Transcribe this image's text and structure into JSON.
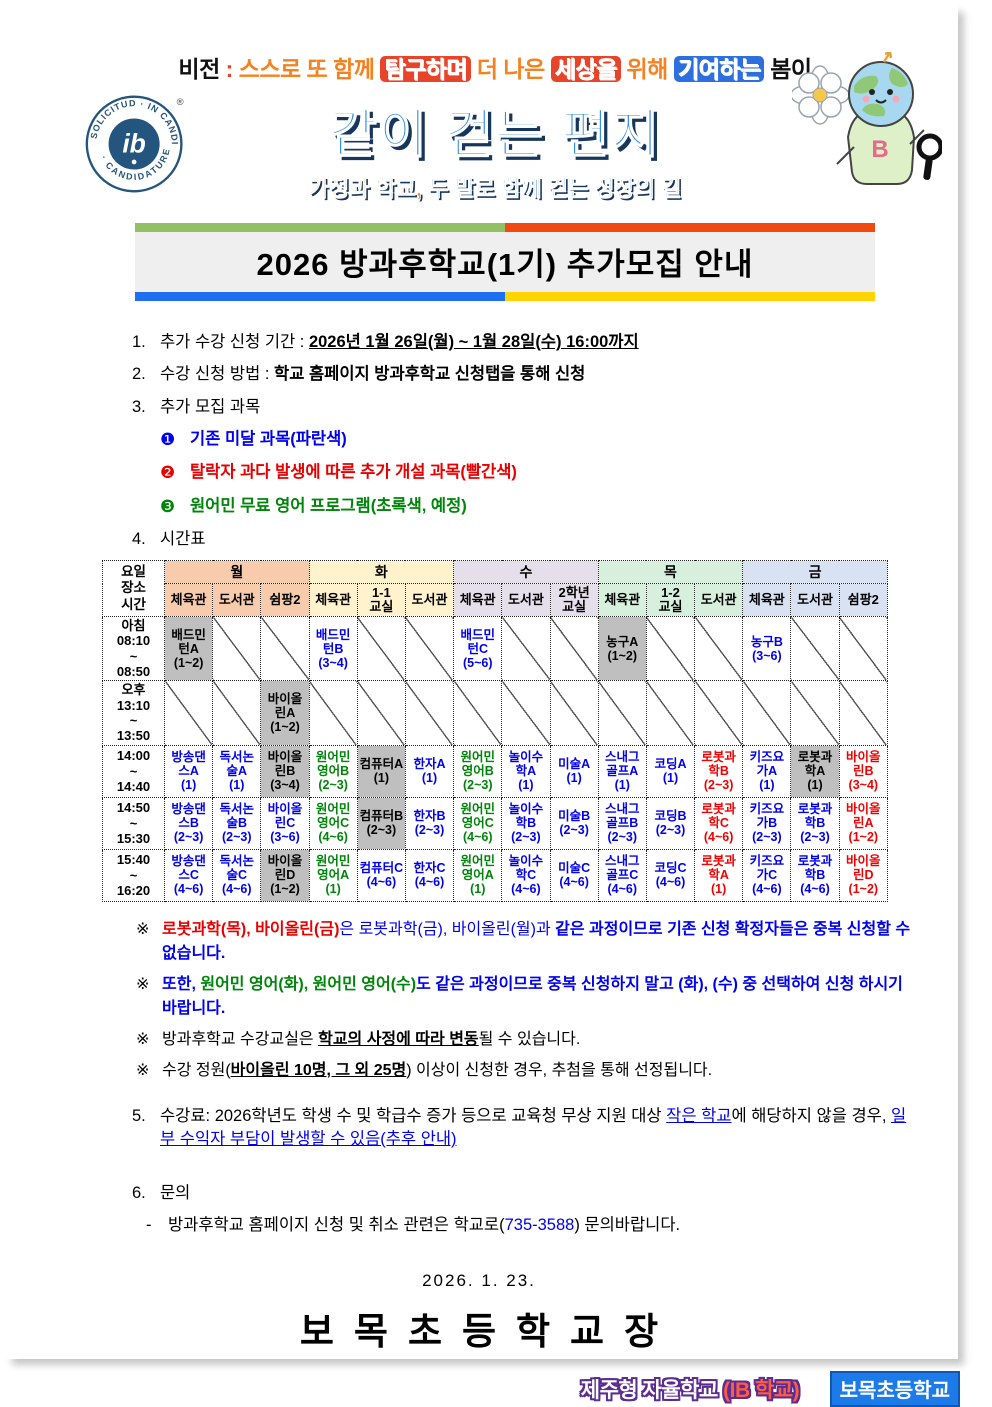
{
  "header": {
    "logo": {
      "ring_text_top": "SOLICITUD · IN CANDIDACY",
      "ring_text_bottom": "· CANDIDATURE ·",
      "monogram": "ib",
      "registered_mark": "®"
    },
    "vision_segments": [
      {
        "t": "비전",
        "s": "vb"
      },
      {
        "t": " : ",
        "s": "vr"
      },
      {
        "t": "스스로 또 함께 ",
        "s": "vo"
      },
      {
        "t": "탐구하며",
        "s": "vrb"
      },
      {
        "t": " 더 나은 ",
        "s": "vo"
      },
      {
        "t": "세상을",
        "s": "vrb"
      },
      {
        "t": " 위해 ",
        "s": "vo"
      },
      {
        "t": "기여하는",
        "s": "vbb"
      },
      {
        "t": " 봄이",
        "s": "vb"
      }
    ],
    "title": "같이 걷는 편지",
    "subtitle_segments": [
      {
        "t": "가정과 학교,",
        "s": "so"
      },
      {
        "t": " 두 발로 함께 걷는 성장의 길",
        "s": "sb"
      }
    ],
    "mascot_icon": "earth-magnifier-mascot",
    "flower_icon": "white-flower"
  },
  "banner": {
    "title": "2026 방과후학교(1기) 추가모집 안내"
  },
  "items": [
    {
      "marker": "1.",
      "segments": [
        {
          "t": "추가 수강 신청 기간 : "
        },
        {
          "t": "2026년 1월 26일(월) ~ 1월 28일(수) 16:00까지",
          "s": "bold underline"
        }
      ]
    },
    {
      "marker": "2.",
      "segments": [
        {
          "t": "수강 신청 방법 : "
        },
        {
          "t": "학교 홈페이지 방과후학교 신청탭을 통해 신청",
          "s": "bold"
        }
      ]
    },
    {
      "marker": "3.",
      "segments": [
        {
          "t": "추가 모집 과목"
        }
      ]
    },
    {
      "marker": "❶",
      "segments": [
        {
          "t": "기존 미달 과목(파란색)",
          "s": "blue bold"
        }
      ]
    },
    {
      "marker": "❷",
      "segments": [
        {
          "t": "탈락자 과다 발생에 따른 추가 개설 과목(빨간색)",
          "s": "red bold"
        }
      ]
    },
    {
      "marker": "❸",
      "segments": [
        {
          "t": "원어민 무료 영어 프로그램(초록색, 예정)",
          "s": "green bold"
        }
      ]
    },
    {
      "marker": "4.",
      "segments": [
        {
          "t": "시간표"
        }
      ]
    }
  ],
  "timetable": {
    "corner": "요일\n장소\n시간",
    "days": [
      {
        "label": "월",
        "color": "#F8CBAD",
        "rooms": [
          "체육관",
          "도서관",
          "쉼팡2"
        ]
      },
      {
        "label": "화",
        "color": "#FFF2CC",
        "rooms": [
          "체육관",
          "1-1\n교실",
          "도서관"
        ]
      },
      {
        "label": "수",
        "color": "#E5DFEC",
        "rooms": [
          "체육관",
          "도서관",
          "2학년\n교실"
        ]
      },
      {
        "label": "목",
        "color": "#D6F0DD",
        "rooms": [
          "체육관",
          "1-2\n교실",
          "도서관"
        ]
      },
      {
        "label": "금",
        "color": "#D9E2F3",
        "rooms": [
          "체육관",
          "도서관",
          "쉼팡2"
        ]
      }
    ],
    "rows": [
      {
        "time": "아침\n08:10\n~\n08:50",
        "h": "tall",
        "cells": [
          {
            "t": "배드민턴A",
            "g": "(1~2)",
            "c": "gray"
          },
          null,
          null,
          {
            "t": "배드민턴B",
            "g": "(3~4)",
            "c": "blue"
          },
          null,
          null,
          {
            "t": "배드민턴C",
            "g": "(5~6)",
            "c": "blue"
          },
          null,
          null,
          {
            "t": "농구A",
            "g": "(1~2)",
            "c": "gray"
          },
          null,
          null,
          {
            "t": "농구B",
            "g": "(3~6)",
            "c": "blue"
          },
          null,
          null
        ]
      },
      {
        "time": "오후\n13:10\n~\n13:50",
        "h": "tall",
        "cells": [
          null,
          null,
          {
            "t": "바이올린A",
            "g": "(1~2)",
            "c": "gray"
          },
          null,
          null,
          null,
          null,
          null,
          null,
          null,
          null,
          null,
          null,
          null,
          null
        ]
      },
      {
        "time": "14:00\n~\n14:40",
        "h": "mid",
        "cells": [
          {
            "t": "방송댄스A",
            "g": "(1)",
            "c": "blue"
          },
          {
            "t": "독서논술A",
            "g": "(1)",
            "c": "blue"
          },
          {
            "t": "바이올린B",
            "g": "(3~4)",
            "c": "gray"
          },
          {
            "t": "원어민영어B",
            "g": "(2~3)",
            "c": "green"
          },
          {
            "t": "컴퓨터A",
            "g": "(1)",
            "c": "gray"
          },
          {
            "t": "한자A",
            "g": "(1)",
            "c": "blue"
          },
          {
            "t": "원어민영어B",
            "g": "(2~3)",
            "c": "green"
          },
          {
            "t": "놀이수학A",
            "g": "(1)",
            "c": "blue"
          },
          {
            "t": "미술A",
            "g": "(1)",
            "c": "blue"
          },
          {
            "t": "스내그골프A",
            "g": "(1)",
            "c": "blue"
          },
          {
            "t": "코딩A",
            "g": "(1)",
            "c": "blue"
          },
          {
            "t": "로봇과학B",
            "g": "(2~3)",
            "c": "red"
          },
          {
            "t": "키즈요가A",
            "g": "(1)",
            "c": "blue"
          },
          {
            "t": "로봇과학A",
            "g": "(1)",
            "c": "gray"
          },
          {
            "t": "바이올린B",
            "g": "(3~4)",
            "c": "red"
          }
        ]
      },
      {
        "time": "14:50\n~\n15:30",
        "h": "mid",
        "cells": [
          {
            "t": "방송댄스B",
            "g": "(2~3)",
            "c": "blue"
          },
          {
            "t": "독서논술B",
            "g": "(2~3)",
            "c": "blue"
          },
          {
            "t": "바이올린C",
            "g": "(3~6)",
            "c": "blue"
          },
          {
            "t": "원어민영어C",
            "g": "(4~6)",
            "c": "green"
          },
          {
            "t": "컴퓨터B",
            "g": "(2~3)",
            "c": "gray"
          },
          {
            "t": "한자B",
            "g": "(2~3)",
            "c": "blue"
          },
          {
            "t": "원어민영어C",
            "g": "(4~6)",
            "c": "green"
          },
          {
            "t": "놀이수학B",
            "g": "(2~3)",
            "c": "blue"
          },
          {
            "t": "미술B",
            "g": "(2~3)",
            "c": "blue"
          },
          {
            "t": "스내그골프B",
            "g": "(2~3)",
            "c": "blue"
          },
          {
            "t": "코딩B",
            "g": "(2~3)",
            "c": "blue"
          },
          {
            "t": "로봇과학C",
            "g": "(4~6)",
            "c": "red"
          },
          {
            "t": "키즈요가B",
            "g": "(2~3)",
            "c": "blue"
          },
          {
            "t": "로봇과학B",
            "g": "(2~3)",
            "c": "blue"
          },
          {
            "t": "바이올린A",
            "g": "(1~2)",
            "c": "red"
          }
        ]
      },
      {
        "time": "15:40\n~\n16:20",
        "h": "mid",
        "cells": [
          {
            "t": "방송댄스C",
            "g": "(4~6)",
            "c": "blue"
          },
          {
            "t": "독서논술C",
            "g": "(4~6)",
            "c": "blue"
          },
          {
            "t": "바이올린D",
            "g": "(1~2)",
            "c": "gray"
          },
          {
            "t": "원어민영어A",
            "g": "(1)",
            "c": "green"
          },
          {
            "t": "컴퓨터C",
            "g": "(4~6)",
            "c": "blue"
          },
          {
            "t": "한자C",
            "g": "(4~6)",
            "c": "blue"
          },
          {
            "t": "원어민영어A",
            "g": "(1)",
            "c": "green"
          },
          {
            "t": "놀이수학C",
            "g": "(4~6)",
            "c": "blue"
          },
          {
            "t": "미술C",
            "g": "(4~6)",
            "c": "blue"
          },
          {
            "t": "스내그골프C",
            "g": "(4~6)",
            "c": "blue"
          },
          {
            "t": "코딩C",
            "g": "(4~6)",
            "c": "blue"
          },
          {
            "t": "로봇과학A",
            "g": "(1)",
            "c": "red"
          },
          {
            "t": "키즈요가C",
            "g": "(4~6)",
            "c": "blue"
          },
          {
            "t": "로봇과학B",
            "g": "(4~6)",
            "c": "blue"
          },
          {
            "t": "바이올린D",
            "g": "(1~2)",
            "c": "red"
          }
        ]
      }
    ]
  },
  "notes": [
    {
      "marker": "※",
      "segments": [
        {
          "t": "로봇과학(목), 바이올린(금)",
          "s": "red bold"
        },
        {
          "t": "은 로봇과학(금), 바이올린(월)과 ",
          "s": "blue"
        },
        {
          "t": "같은 과정이므로 기존 신청 확정자들은 중복 신청할 수 없습니다.",
          "s": "blue bold"
        }
      ]
    },
    {
      "marker": "※",
      "segments": [
        {
          "t": "또한, ",
          "s": "blue bold"
        },
        {
          "t": "원어민 영어(화), 원어민 영어(수)",
          "s": "green bold"
        },
        {
          "t": "도 같은 과정이므로 중복 신청하지 말고 (화), (수) 중 선택하여 신청 하시기 바랍니다.",
          "s": "blue bold"
        }
      ]
    },
    {
      "marker": "※",
      "segments": [
        {
          "t": "방과후학교 수강교실은 "
        },
        {
          "t": "학교의 사정에 따라 변동",
          "s": "bold underline"
        },
        {
          "t": "될 수 있습니다."
        }
      ]
    },
    {
      "marker": "※",
      "segments": [
        {
          "t": "수강 정원("
        },
        {
          "t": "바이올린 10명, 그 외 25명",
          "s": "bold underline"
        },
        {
          "t": ") 이상이 신청한 경우, 추첨을 통해 선정됩니다."
        }
      ]
    }
  ],
  "item5": {
    "marker": "5.",
    "segments": [
      {
        "t": "수강료: 2026학년도 학생 수 및 학급수 증가 등으로 교육청 무상 지원 대상 "
      },
      {
        "t": "작은 학교",
        "s": "blue underline"
      },
      {
        "t": "에 해당하지 않을 경우, "
      },
      {
        "t": "일부 수익자 부담이 발생할 수 있음(추후 안내)",
        "s": "blue underline"
      }
    ]
  },
  "item6": {
    "marker": "6.",
    "segments": [
      {
        "t": "문의"
      }
    ]
  },
  "item6_sub": {
    "marker": "-",
    "segments": [
      {
        "t": "방과후학교 홈페이지 신청 및 취소 관련은 학교로("
      },
      {
        "t": "735-3588",
        "s": "blue"
      },
      {
        "t": ") 문의바랍니다."
      }
    ]
  },
  "footer": {
    "date": "2026. 1. 23.",
    "signature": "보목초등학교장"
  },
  "badges": {
    "jeju_label": "제주형 자율학교 ",
    "jeju_ib": "(IB 학교)",
    "school": "보목초등학교"
  }
}
